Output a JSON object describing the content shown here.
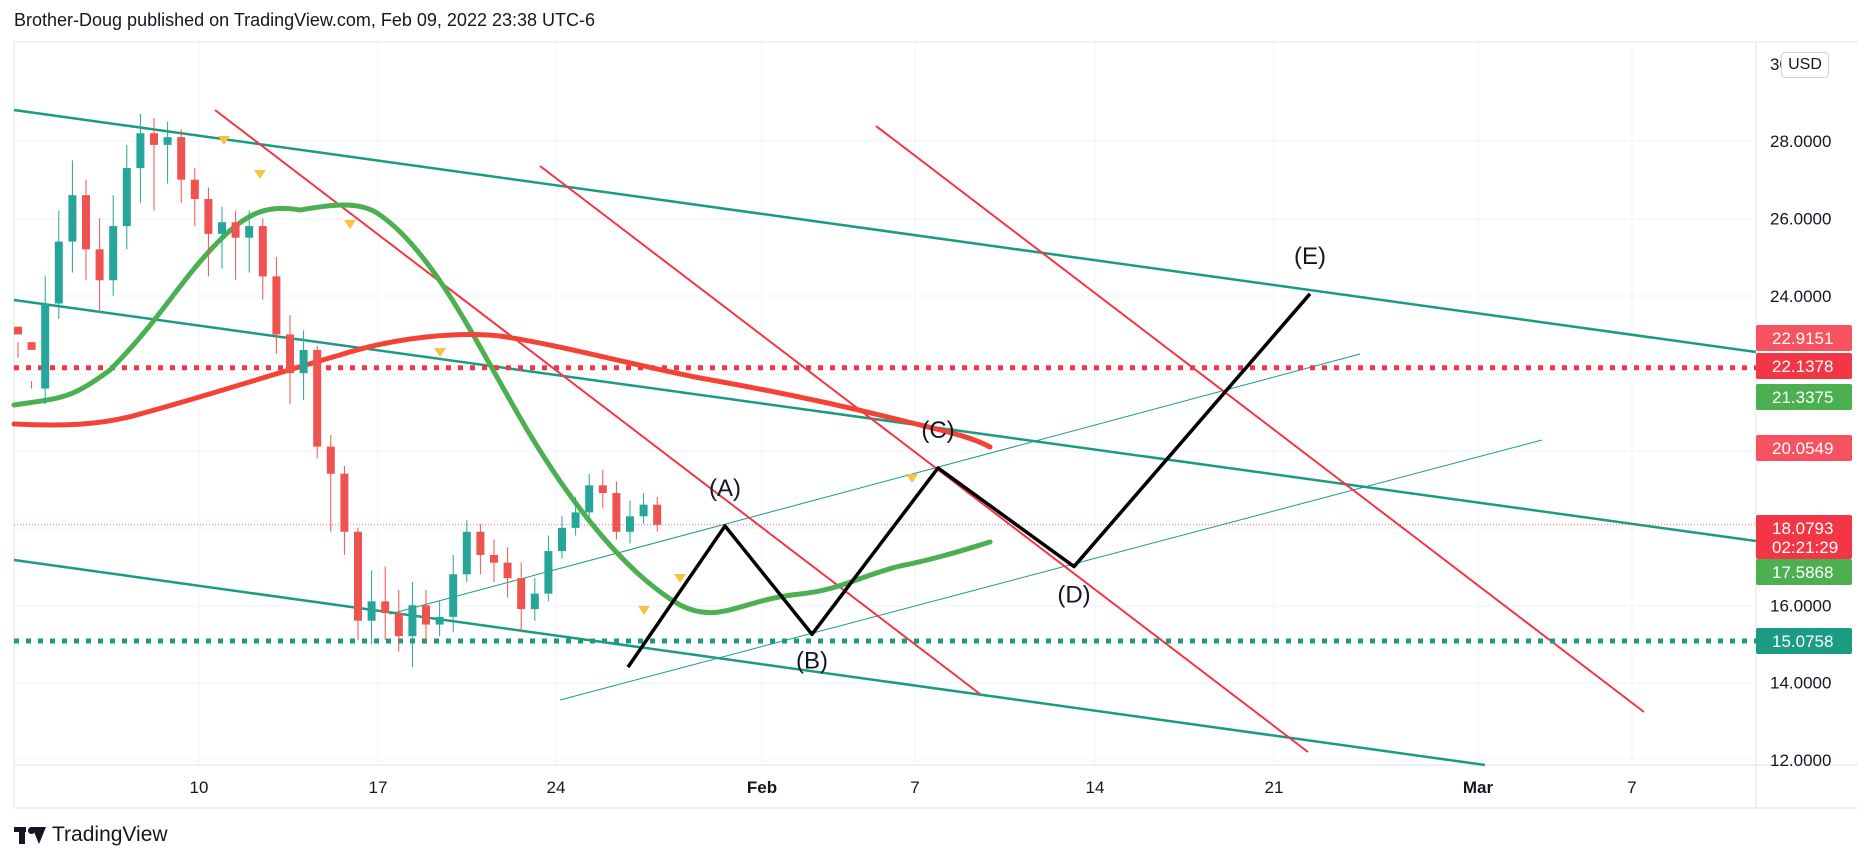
{
  "header": {
    "published_line": "Brother-Doug published on TradingView.com, Feb 09, 2022 23:38 UTC-6"
  },
  "footer": {
    "brand": "TradingView"
  },
  "currency_badge": "USD",
  "colors": {
    "green_channel": "#1a9b82",
    "red_lines": "#f23645",
    "ma_green": "#4caf50",
    "ma_red": "#f44336",
    "candle_up": "#26a69a",
    "candle_down": "#ef5350",
    "wave_line": "#000000",
    "marker_yellow": "#f6c343",
    "grid": "#f0f3fa"
  },
  "chart_data": {
    "type": "candlestick",
    "symbol_currency": "USD",
    "y_axis_ticks": [
      "28.0000",
      "26.0000",
      "24.0000",
      "16.0000",
      "14.0000",
      "12.0000"
    ],
    "y_axis_partial_top": "30",
    "x_axis_ticks": [
      "10",
      "17",
      "24",
      "Feb",
      "7",
      "14",
      "21",
      "Mar",
      "7"
    ],
    "ylim": [
      11.5,
      29.8
    ],
    "price_labels": [
      {
        "value": 22.9151,
        "text": "22.9151",
        "color": "#f23645",
        "style": "light"
      },
      {
        "value": 22.1378,
        "text": "22.1378",
        "color": "#f23645",
        "style": "solid"
      },
      {
        "value": 21.3375,
        "text": "21.3375",
        "color": "#4caf50",
        "style": "solid"
      },
      {
        "value": 20.0549,
        "text": "20.0549",
        "color": "#f23645",
        "style": "light"
      },
      {
        "value": 18.0793,
        "text": "18.0793",
        "countdown": "02:21:29",
        "color": "#f23645",
        "style": "solid"
      },
      {
        "value": 17.5868,
        "text": "17.5868",
        "color": "#4caf50",
        "style": "solid"
      },
      {
        "value": 15.0758,
        "text": "15.0758",
        "color": "#1a9b82",
        "style": "solid"
      }
    ],
    "horizontal_levels": [
      {
        "value": 22.1378,
        "color": "#f23645",
        "dotted": true
      },
      {
        "value": 15.0758,
        "color": "#1a9b82",
        "dotted": true
      },
      {
        "value": 18.0793,
        "color": "#f23645",
        "dotted": "thin"
      }
    ],
    "wave_labels": [
      {
        "label": "(A)",
        "date_index": 25,
        "price": 18.05
      },
      {
        "label": "(B)",
        "date_index": 30,
        "price": 15.25
      },
      {
        "label": "(C)",
        "date_index": 35,
        "price": 19.55
      },
      {
        "label": "(D)",
        "date_index": 43,
        "price": 17.0
      },
      {
        "label": "(E)",
        "date_index": 58,
        "price": 24.05
      }
    ],
    "wave_path": [
      {
        "date_index": 23,
        "price": 14.4
      },
      {
        "date_index": 25,
        "price": 18.05
      },
      {
        "date_index": 30,
        "price": 15.25
      },
      {
        "date_index": 35,
        "price": 19.55
      },
      {
        "date_index": 43,
        "price": 17.0
      },
      {
        "date_index": 58,
        "price": 24.05
      }
    ],
    "candles": [
      [
        23.2,
        23.0,
        22.4,
        22.8
      ],
      [
        22.8,
        22.6,
        21.8,
        21.6
      ],
      [
        21.6,
        23.8,
        24.5,
        21.2
      ],
      [
        23.8,
        25.4,
        26.2,
        23.4
      ],
      [
        25.4,
        26.6,
        27.5,
        24.6
      ],
      [
        26.6,
        25.2,
        27.0,
        24.4
      ],
      [
        25.2,
        24.4,
        26.0,
        23.6
      ],
      [
        24.4,
        25.8,
        26.6,
        24.0
      ],
      [
        25.8,
        27.3,
        27.9,
        25.2
      ],
      [
        27.3,
        28.2,
        28.7,
        26.4
      ],
      [
        28.2,
        27.9,
        28.6,
        26.2
      ],
      [
        27.9,
        28.1,
        28.5,
        26.9
      ],
      [
        28.1,
        27.0,
        28.3,
        26.4
      ],
      [
        27.0,
        26.5,
        27.3,
        25.8
      ],
      [
        26.5,
        25.6,
        26.8,
        24.5
      ],
      [
        25.6,
        25.9,
        26.3,
        24.7
      ],
      [
        25.9,
        25.5,
        26.2,
        24.4
      ],
      [
        25.5,
        25.8,
        26.2,
        24.6
      ],
      [
        25.8,
        24.5,
        26.0,
        23.9
      ],
      [
        24.5,
        23.0,
        25.0,
        22.5
      ],
      [
        23.0,
        22.0,
        23.5,
        21.2
      ],
      [
        22.0,
        22.6,
        23.1,
        21.3
      ],
      [
        22.6,
        20.1,
        22.7,
        19.8
      ],
      [
        20.1,
        19.4,
        20.4,
        17.9
      ],
      [
        19.4,
        17.9,
        19.6,
        17.3
      ],
      [
        17.9,
        15.6,
        18.0,
        15.1
      ],
      [
        15.6,
        16.1,
        16.9,
        15.0
      ],
      [
        16.1,
        15.8,
        17.0,
        15.1
      ],
      [
        15.8,
        15.2,
        16.4,
        14.8
      ],
      [
        15.2,
        16.0,
        16.6,
        14.4
      ],
      [
        16.0,
        15.5,
        16.4,
        15.0
      ],
      [
        15.5,
        15.7,
        16.1,
        15.2
      ],
      [
        15.7,
        16.8,
        17.3,
        15.3
      ],
      [
        16.8,
        17.9,
        18.2,
        16.6
      ],
      [
        17.9,
        17.3,
        18.1,
        16.8
      ],
      [
        17.3,
        17.1,
        17.7,
        16.6
      ],
      [
        17.1,
        16.7,
        17.5,
        16.2
      ],
      [
        16.7,
        15.9,
        17.1,
        15.3
      ],
      [
        15.9,
        16.3,
        16.7,
        15.6
      ],
      [
        16.3,
        17.4,
        17.8,
        16.1
      ],
      [
        17.4,
        18.0,
        18.3,
        17.2
      ],
      [
        18.0,
        18.4,
        18.8,
        17.8
      ],
      [
        18.4,
        19.1,
        19.4,
        18.2
      ],
      [
        19.1,
        18.9,
        19.5,
        18.5
      ],
      [
        18.9,
        17.9,
        19.2,
        17.7
      ],
      [
        17.9,
        18.3,
        18.7,
        17.6
      ],
      [
        18.3,
        18.6,
        18.9,
        18.1
      ],
      [
        18.6,
        18.08,
        18.8,
        17.9
      ]
    ]
  }
}
